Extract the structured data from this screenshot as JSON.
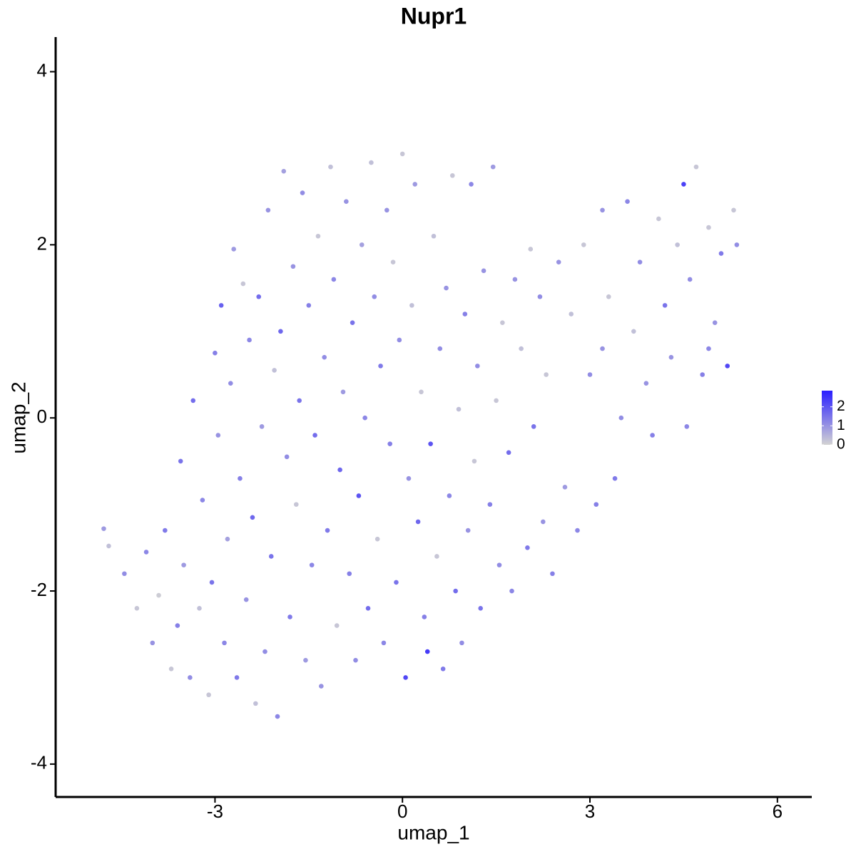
{
  "chart_data": {
    "type": "scatter",
    "title": "Nupr1",
    "xlabel": "umap_1",
    "ylabel": "umap_2",
    "xlim": [
      -5.55,
      6.55
    ],
    "ylim": [
      -4.38,
      4.4
    ],
    "xticks": [
      -3,
      0,
      3,
      6
    ],
    "yticks": [
      -4,
      -2,
      0,
      2,
      4
    ],
    "color_low": "#d3d3d3",
    "color_high": "#2a1eff",
    "color_range": [
      0,
      2.85
    ],
    "legend_ticks": [
      0,
      1,
      2
    ],
    "x": [
      -4.78,
      -4.7,
      -4.45,
      -4.25,
      -4.1,
      -4.0,
      -3.9,
      -3.8,
      -3.7,
      -3.6,
      -3.55,
      -3.5,
      -3.4,
      -3.35,
      -3.25,
      -3.2,
      -3.1,
      -3.05,
      -3.0,
      -2.95,
      -2.9,
      -2.85,
      -2.8,
      -2.75,
      -2.7,
      -2.65,
      -2.6,
      -2.55,
      -2.5,
      -2.45,
      -2.4,
      -2.35,
      -2.3,
      -2.25,
      -2.2,
      -2.15,
      -2.1,
      -2.05,
      -2.0,
      -1.95,
      -1.9,
      -1.85,
      -1.8,
      -1.75,
      -1.7,
      -1.65,
      -1.6,
      -1.55,
      -1.5,
      -1.45,
      -1.4,
      -1.35,
      -1.3,
      -1.25,
      -1.2,
      -1.15,
      -1.1,
      -1.05,
      -1.0,
      -0.95,
      -0.9,
      -0.85,
      -0.8,
      -0.75,
      -0.7,
      -0.65,
      -0.6,
      -0.55,
      -0.5,
      -0.45,
      -0.4,
      -0.35,
      -0.3,
      -0.25,
      -0.2,
      -0.15,
      -0.1,
      -0.05,
      0.0,
      0.05,
      0.1,
      0.15,
      0.2,
      0.25,
      0.3,
      0.35,
      0.4,
      0.45,
      0.5,
      0.55,
      0.6,
      0.65,
      0.7,
      0.75,
      0.8,
      0.85,
      0.9,
      0.95,
      1.0,
      1.05,
      1.1,
      1.15,
      1.2,
      1.25,
      1.3,
      1.4,
      1.45,
      1.5,
      1.55,
      1.6,
      1.7,
      1.75,
      1.8,
      1.9,
      2.0,
      2.05,
      2.1,
      2.2,
      2.25,
      2.3,
      2.4,
      2.5,
      2.6,
      2.7,
      2.8,
      2.9,
      3.0,
      3.1,
      3.2,
      3.3,
      3.4,
      3.5,
      3.6,
      3.7,
      3.8,
      3.9,
      4.0,
      4.1,
      4.2,
      4.3,
      4.4,
      4.5,
      4.55,
      4.6,
      4.7,
      4.8,
      4.9,
      5.0,
      5.1,
      5.2,
      5.3,
      5.35,
      4.9,
      3.2
    ],
    "y": [
      -1.28,
      -1.48,
      -1.8,
      -2.2,
      -1.55,
      -2.6,
      -2.05,
      -1.3,
      -2.9,
      -2.4,
      -0.5,
      -1.7,
      -3.0,
      0.2,
      -2.2,
      -0.95,
      -3.2,
      -1.9,
      0.75,
      -0.2,
      1.3,
      -2.6,
      -1.4,
      0.4,
      1.95,
      -3.0,
      -0.7,
      1.55,
      -2.1,
      0.9,
      -1.15,
      -3.3,
      1.4,
      -0.1,
      -2.7,
      2.4,
      -1.6,
      0.55,
      -3.45,
      1.0,
      2.85,
      -0.45,
      -2.3,
      1.75,
      -1.0,
      0.2,
      2.6,
      -2.8,
      1.3,
      -1.7,
      -0.2,
      2.1,
      -3.1,
      0.7,
      -1.3,
      2.9,
      1.6,
      -2.4,
      -0.6,
      0.3,
      2.5,
      -1.8,
      1.1,
      -2.8,
      -0.9,
      2.0,
      0.0,
      -2.2,
      2.95,
      1.4,
      -1.4,
      0.6,
      -2.6,
      2.4,
      -0.3,
      1.8,
      -1.9,
      0.9,
      3.05,
      -3.0,
      -0.7,
      1.3,
      2.7,
      -1.2,
      0.3,
      -2.3,
      -2.7,
      -0.3,
      2.1,
      -1.6,
      0.8,
      -2.9,
      1.5,
      -0.9,
      2.8,
      -2.0,
      0.1,
      -2.6,
      1.2,
      -1.3,
      2.7,
      -0.5,
      0.6,
      -2.2,
      1.7,
      -1.0,
      2.9,
      0.2,
      -1.7,
      1.1,
      -0.4,
      -2.0,
      1.6,
      0.8,
      -1.5,
      1.95,
      -0.1,
      1.4,
      -1.2,
      0.5,
      -1.8,
      1.8,
      -0.8,
      1.2,
      -1.3,
      2.0,
      0.5,
      -1.0,
      2.4,
      1.4,
      -0.7,
      0.0,
      2.5,
      1.0,
      1.8,
      0.4,
      -0.2,
      2.3,
      1.3,
      0.7,
      2.0,
      2.7,
      -0.1,
      1.6,
      2.9,
      0.5,
      2.2,
      1.1,
      1.9,
      0.6,
      2.4,
      2.0,
      0.8,
      0.8
    ],
    "values": [
      0.9,
      0.3,
      1.1,
      0.2,
      1.2,
      1.0,
      0.1,
      1.4,
      0.2,
      1.3,
      1.5,
      0.9,
      1.1,
      1.6,
      0.3,
      1.2,
      0.2,
      1.5,
      1.3,
      1.0,
      1.8,
      1.2,
      0.8,
      1.1,
      0.9,
      1.4,
      1.3,
      0.2,
      1.0,
      1.2,
      1.7,
      0.3,
      1.6,
      0.9,
      1.1,
      1.0,
      1.5,
      0.3,
      1.2,
      1.7,
      0.8,
      1.1,
      1.4,
      1.0,
      0.2,
      1.5,
      1.1,
      0.9,
      1.3,
      1.2,
      1.6,
      0.2,
      1.0,
      1.1,
      1.4,
      0.3,
      1.2,
      0.2,
      1.7,
      0.9,
      1.0,
      1.3,
      1.5,
      1.1,
      2.0,
      0.8,
      1.2,
      1.6,
      0.3,
      1.1,
      0.2,
      1.4,
      1.2,
      1.0,
      1.3,
      0.2,
      1.5,
      1.1,
      0.2,
      2.2,
      1.0,
      0.3,
      0.9,
      1.7,
      0.2,
      1.3,
      2.4,
      2.0,
      0.3,
      0.2,
      1.1,
      1.4,
      1.0,
      1.2,
      0.2,
      1.6,
      0.3,
      1.1,
      1.3,
      1.0,
      1.2,
      0.2,
      1.1,
      1.5,
      1.0,
      1.3,
      0.9,
      0.2,
      1.1,
      0.2,
      1.6,
      1.2,
      1.0,
      0.3,
      1.4,
      0.2,
      1.5,
      1.1,
      1.0,
      0.2,
      1.3,
      1.0,
      0.9,
      0.3,
      1.2,
      0.2,
      1.1,
      1.3,
      1.0,
      0.2,
      1.4,
      1.1,
      1.2,
      0.3,
      1.1,
      1.0,
      1.3,
      0.2,
      1.5,
      1.0,
      0.3,
      2.3,
      1.2,
      1.1,
      0.2,
      1.3,
      0.2,
      1.0,
      1.4,
      2.2,
      0.2,
      1.1,
      1.2,
      1.0
    ]
  }
}
